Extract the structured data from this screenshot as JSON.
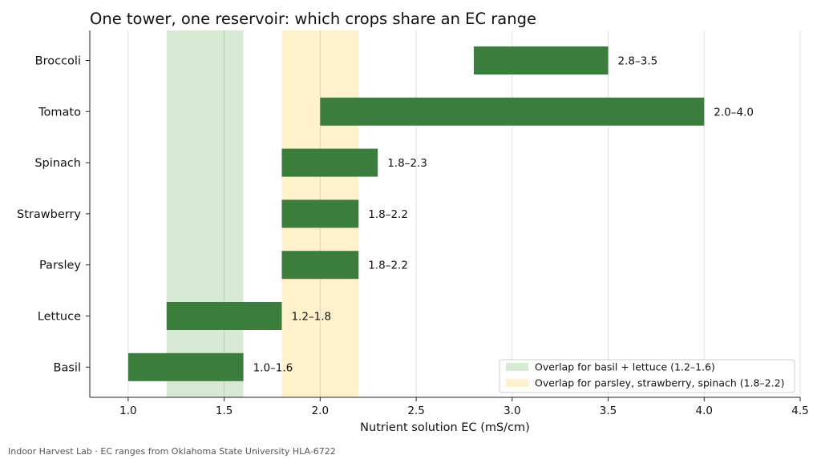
{
  "chart_data": {
    "type": "bar",
    "orientation": "horizontal",
    "title": "One tower, one reservoir: which crops share an EC range",
    "xlabel": "Nutrient solution EC (mS/cm)",
    "ylabel": "",
    "xlim": [
      0.8,
      4.5
    ],
    "x_ticks": [
      1.0,
      1.5,
      2.0,
      2.5,
      3.0,
      3.5,
      4.0,
      4.5
    ],
    "x_tick_labels": [
      "1.0",
      "1.5",
      "2.0",
      "2.5",
      "3.0",
      "3.5",
      "4.0",
      "4.5"
    ],
    "grid": "vertical",
    "categories": [
      "Basil",
      "Lettuce",
      "Parsley",
      "Strawberry",
      "Spinach",
      "Tomato",
      "Broccoli"
    ],
    "ranges": [
      {
        "crop": "Basil",
        "low": 1.0,
        "high": 1.6,
        "label": "1.0–1.6"
      },
      {
        "crop": "Lettuce",
        "low": 1.2,
        "high": 1.8,
        "label": "1.2–1.8"
      },
      {
        "crop": "Parsley",
        "low": 1.8,
        "high": 2.2,
        "label": "1.8–2.2"
      },
      {
        "crop": "Strawberry",
        "low": 1.8,
        "high": 2.2,
        "label": "1.8–2.2"
      },
      {
        "crop": "Spinach",
        "low": 1.8,
        "high": 2.3,
        "label": "1.8–2.3"
      },
      {
        "crop": "Tomato",
        "low": 2.0,
        "high": 4.0,
        "label": "2.0–4.0"
      },
      {
        "crop": "Broccoli",
        "low": 2.8,
        "high": 3.5,
        "label": "2.8–3.5"
      }
    ],
    "bar_color": "#3a7d3c",
    "bands": [
      {
        "label": "Overlap for basil + lettuce (1.2–1.6)",
        "low": 1.2,
        "high": 1.6,
        "color": "#d7ead3"
      },
      {
        "label": "Overlap for parsley, strawberry, spinach (1.8–2.2)",
        "low": 1.8,
        "high": 2.2,
        "color": "#fff1cc"
      }
    ],
    "legend_position": "lower-right"
  },
  "footer": "Indoor Harvest Lab · EC ranges from Oklahoma State University HLA-6722"
}
